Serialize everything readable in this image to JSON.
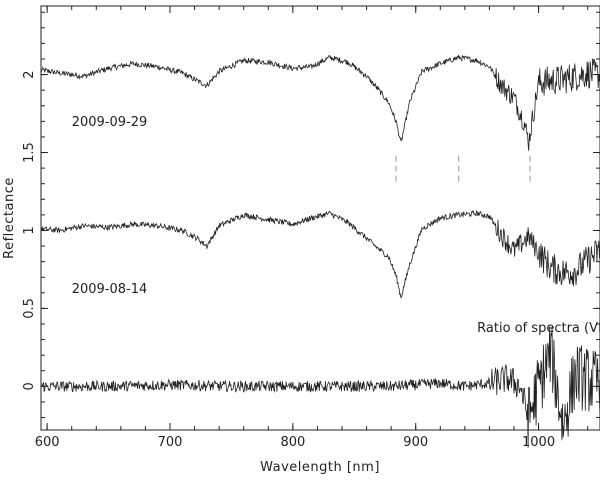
{
  "chart_data": {
    "type": "line",
    "title": "",
    "xlabel": "Wavelength [nm]",
    "ylabel": "Reflectance",
    "xlim": [
      595,
      1050
    ],
    "ylim": [
      -0.28,
      2.44
    ],
    "x_ticks": [
      600,
      700,
      800,
      900,
      1000
    ],
    "y_ticks": [
      0,
      0.5,
      1,
      1.5,
      2
    ],
    "x_tick_labels": [
      "600",
      "700",
      "800",
      "900",
      "1000"
    ],
    "y_tick_labels": [
      "0",
      "0.5",
      "1",
      "1.5",
      "2"
    ],
    "grid": false,
    "series": [
      {
        "name": "2009-09-29",
        "x": [
          595,
          610,
          630,
          650,
          670,
          690,
          710,
          722,
          730,
          740,
          760,
          780,
          800,
          815,
          830,
          845,
          860,
          870,
          878,
          884,
          888,
          895,
          905,
          920,
          935,
          950,
          960,
          970,
          980,
          988,
          992,
          1000,
          1010,
          1020,
          1030,
          1040,
          1050
        ],
        "y": [
          2.03,
          2.01,
          1.99,
          2.04,
          2.07,
          2.05,
          2.01,
          1.96,
          1.93,
          2.02,
          2.09,
          2.08,
          2.04,
          2.05,
          2.11,
          2.08,
          1.99,
          1.9,
          1.82,
          1.7,
          1.56,
          1.82,
          2.02,
          2.07,
          2.11,
          2.09,
          2.05,
          1.93,
          1.85,
          1.7,
          1.57,
          1.95,
          1.96,
          1.97,
          1.99,
          2.01,
          2.0
        ]
      },
      {
        "name": "2009-08-14",
        "x": [
          595,
          610,
          630,
          650,
          670,
          690,
          710,
          722,
          730,
          740,
          760,
          780,
          800,
          815,
          830,
          845,
          860,
          870,
          878,
          884,
          888,
          895,
          905,
          920,
          935,
          950,
          960,
          970,
          980,
          988,
          992,
          1000,
          1010,
          1020,
          1030,
          1040,
          1050
        ],
        "y": [
          1.01,
          1.0,
          1.03,
          1.02,
          1.04,
          1.03,
          1.0,
          0.95,
          0.9,
          1.03,
          1.1,
          1.07,
          1.04,
          1.08,
          1.11,
          1.05,
          0.95,
          0.88,
          0.83,
          0.71,
          0.57,
          0.78,
          1.01,
          1.08,
          1.1,
          1.11,
          1.09,
          0.97,
          0.87,
          0.93,
          0.96,
          0.86,
          0.76,
          0.73,
          0.74,
          0.81,
          0.87
        ]
      },
      {
        "name": "Ratio of spectra (VIS)",
        "x": [
          595,
          650,
          700,
          750,
          800,
          850,
          880,
          900,
          920,
          940,
          960,
          975,
          985,
          992,
          1000,
          1010,
          1020,
          1030,
          1040,
          1050
        ],
        "y": [
          0.0,
          0.0,
          0.01,
          0.0,
          0.0,
          0.0,
          0.0,
          0.01,
          0.02,
          0.0,
          0.02,
          0.05,
          0.0,
          -0.2,
          0.0,
          0.22,
          -0.25,
          0.08,
          0.04,
          0.02
        ]
      }
    ],
    "annotations": [
      {
        "text": "2009-09-29",
        "x": 620,
        "y": 1.67
      },
      {
        "text": "2009-08-14",
        "x": 620,
        "y": 0.6
      },
      {
        "text": "Ratio of spectra (VIS)",
        "x": 950,
        "y": 0.35
      }
    ],
    "markers": [
      {
        "x": 884,
        "y_from": 1.3,
        "y_to": 1.48
      },
      {
        "x": 935,
        "y_from": 1.3,
        "y_to": 1.48
      },
      {
        "x": 993,
        "y_from": 1.3,
        "y_to": 1.48
      }
    ],
    "line_color": "#222222",
    "marker_color": "#999999"
  }
}
